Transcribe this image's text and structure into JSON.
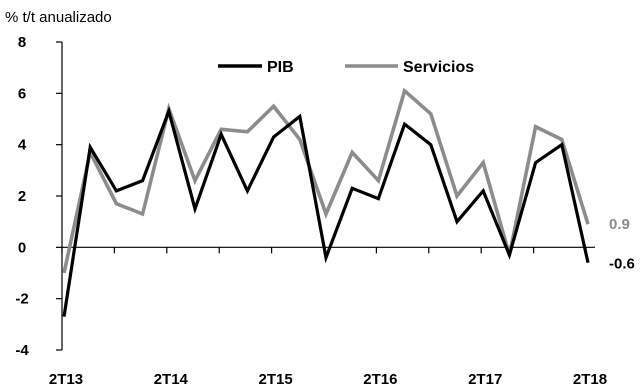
{
  "chart_data": {
    "type": "line",
    "y_unit_label": "% t/t anualizado",
    "ylim": [
      -4,
      8
    ],
    "yticks": [
      "8",
      "6",
      "4",
      "2",
      "0",
      "-2",
      "-4"
    ],
    "ytick_values": [
      8,
      6,
      4,
      2,
      0,
      -2,
      -4
    ],
    "x": [
      "2T13",
      "3T13",
      "4T13",
      "1T14",
      "2T14",
      "3T14",
      "4T14",
      "1T15",
      "2T15",
      "3T15",
      "4T15",
      "1T16",
      "2T16",
      "3T16",
      "4T16",
      "1T17",
      "2T17",
      "3T17",
      "4T17",
      "1T18",
      "2T18"
    ],
    "xtick_labels": [
      "2T13",
      "2T14",
      "2T15",
      "2T16",
      "2T17",
      "2T18"
    ],
    "xtick_positions": [
      0,
      4,
      8,
      12,
      16,
      20
    ],
    "grid": false,
    "legend_position": "top",
    "series": [
      {
        "name": "PIB",
        "color": "#000000",
        "values": [
          -2.7,
          3.9,
          2.2,
          2.6,
          5.3,
          1.5,
          4.4,
          2.2,
          4.3,
          5.1,
          -0.4,
          2.3,
          1.9,
          4.8,
          4.0,
          1.0,
          2.2,
          -0.3,
          3.3,
          4.0,
          -0.6
        ]
      },
      {
        "name": "Servicios",
        "color": "#8c8c8c",
        "values": [
          -1.0,
          3.7,
          1.7,
          1.3,
          5.4,
          2.6,
          4.6,
          4.5,
          5.5,
          4.2,
          1.3,
          3.7,
          2.6,
          6.1,
          5.2,
          2.0,
          3.3,
          -0.3,
          4.7,
          4.2,
          0.9
        ]
      }
    ],
    "end_labels": [
      {
        "series": "Servicios",
        "text": "0.9",
        "color": "#8c8c8c"
      },
      {
        "series": "PIB",
        "text": "-0.6",
        "color": "#000000"
      }
    ]
  }
}
